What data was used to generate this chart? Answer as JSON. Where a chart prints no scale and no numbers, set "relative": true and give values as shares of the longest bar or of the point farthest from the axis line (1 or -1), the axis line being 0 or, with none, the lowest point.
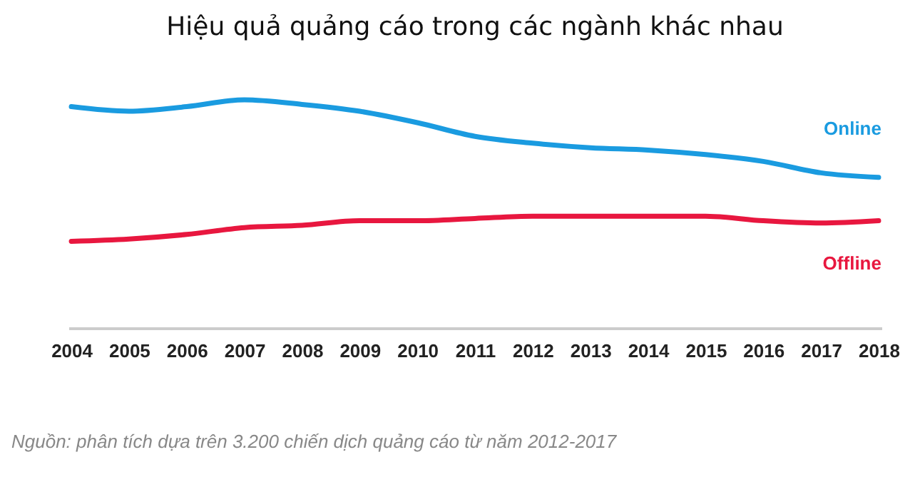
{
  "chart_data": {
    "type": "line",
    "title": "Hiệu quả quảng cáo trong các ngành khác nhau",
    "relative": true,
    "legend": false,
    "grid": false,
    "tick_labels": "x",
    "categories": [
      "2004",
      "2005",
      "2006",
      "2007",
      "2008",
      "2009",
      "2010",
      "2011",
      "2012",
      "2013",
      "2014",
      "2015",
      "2016",
      "2017",
      "2018"
    ],
    "series": [
      {
        "name": "Online",
        "color": "#1a9be0",
        "values": [
          0.97,
          0.95,
          0.97,
          1,
          0.98,
          0.95,
          0.9,
          0.84,
          0.81,
          0.79,
          0.78,
          0.76,
          0.73,
          0.68,
          0.66
        ]
      },
      {
        "name": "Offline",
        "color": "#e8173f",
        "values": [
          0.38,
          0.39,
          0.41,
          0.44,
          0.45,
          0.47,
          0.47,
          0.48,
          0.49,
          0.49,
          0.49,
          0.49,
          0.47,
          0.46,
          0.47
        ]
      }
    ],
    "annotations": [
      "Nguồn: phân tích dựa trên 3.200 chiến dịch quảng cáo từ năm 2012-2017"
    ]
  }
}
